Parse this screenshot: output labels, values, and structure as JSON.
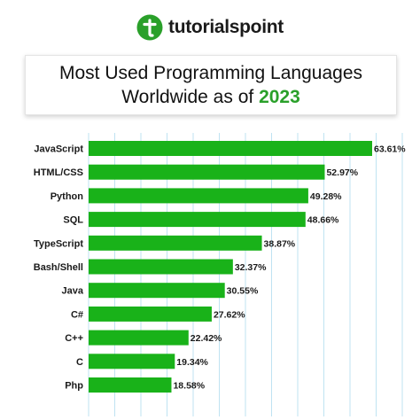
{
  "brand": {
    "name": "tutorialspoint",
    "logo_icon": "tutorialspoint-logo-icon",
    "color": "#2aa02a"
  },
  "title": {
    "line1": "Most Used Programming Languages",
    "line2_prefix": "Worldwide as of ",
    "line2_year": "2023"
  },
  "colors": {
    "bar": "#19b219",
    "grid": "#bfe3f2",
    "accent": "#2aa02a"
  },
  "chart_data": {
    "type": "bar",
    "orientation": "horizontal",
    "title": "Most Used Programming Languages Worldwide as of 2023",
    "xlabel": "",
    "ylabel": "",
    "xlim": [
      0,
      65
    ],
    "grid": true,
    "categories": [
      "JavaScript",
      "HTML/CSS",
      "Python",
      "SQL",
      "TypeScript",
      "Bash/Shell",
      "Java",
      "C#",
      "C++",
      "C",
      "Php"
    ],
    "values": [
      63.61,
      52.97,
      49.28,
      48.66,
      38.87,
      32.37,
      30.55,
      27.62,
      22.42,
      19.34,
      18.58
    ],
    "value_labels": [
      "63.61%",
      "52.97%",
      "49.28%",
      "48.66%",
      "38.87%",
      "32.37%",
      "30.55%",
      "27.62%",
      "22.42%",
      "19.34%",
      "18.58%"
    ]
  }
}
